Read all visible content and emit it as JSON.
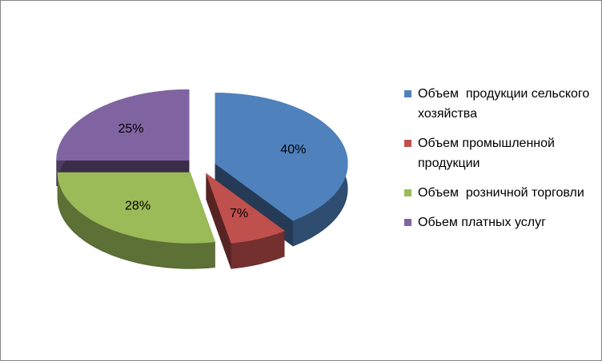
{
  "chart_data": {
    "type": "pie",
    "categories": [
      "Объем  продукции сельского хозяйства",
      "Объем промышленной продукции",
      "Объем  розничной торговли",
      "Обьем платных услуг"
    ],
    "values": [
      40,
      7,
      28,
      25
    ],
    "value_labels": [
      "40%",
      "7%",
      "28%",
      "25%"
    ],
    "colors": [
      "#4f81bd",
      "#c0504d",
      "#9bbb59",
      "#8064a2"
    ],
    "legend": "right"
  }
}
